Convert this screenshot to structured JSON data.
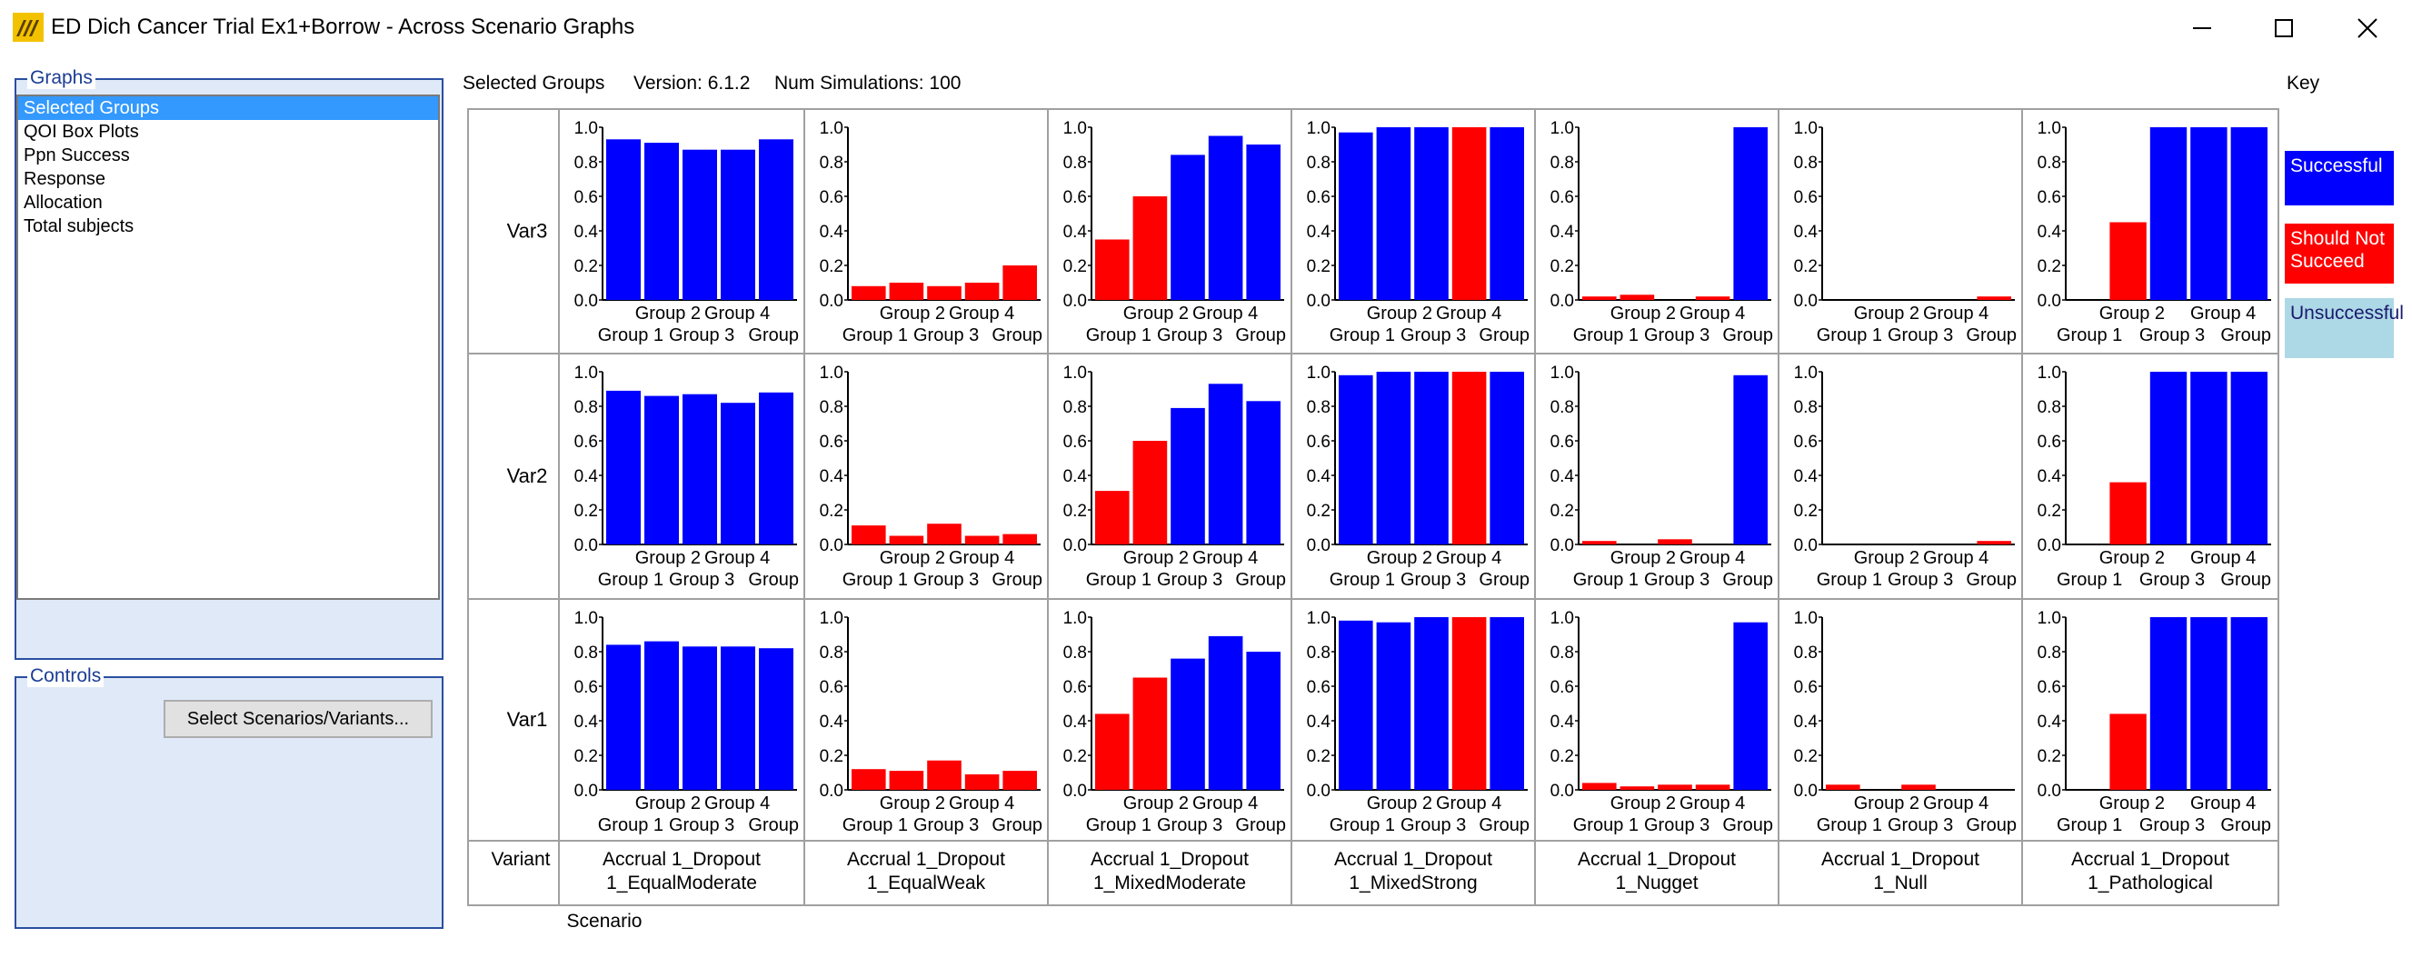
{
  "window": {
    "title": "ED Dich Cancer Trial Ex1+Borrow - Across Scenario Graphs",
    "icon": "app-logo-icon",
    "controls": [
      "minimize-icon",
      "maximize-icon",
      "close-icon"
    ]
  },
  "graphs_panel": {
    "legend": "Graphs",
    "items": [
      "Selected Groups",
      "QOI Box Plots",
      "Ppn Success",
      "Response",
      "Allocation",
      "Total subjects"
    ],
    "selected_index": 0
  },
  "controls_panel": {
    "legend": "Controls",
    "button_label": "Select Scenarios/Variants..."
  },
  "header": {
    "graph_name": "Selected Groups",
    "version_text": "Version: 6.1.2",
    "simulations_text": "Num Simulations: 100"
  },
  "key": {
    "title": "Key",
    "items": [
      {
        "label": "Successful",
        "color": "#0000ff"
      },
      {
        "label": "Should Not Succeed",
        "color": "#ff0000"
      },
      {
        "label": "Unsuccessful",
        "color": "#add8e6"
      }
    ]
  },
  "grid": {
    "row_labels": [
      "Var3",
      "Var2",
      "Var1"
    ],
    "variant_label": "Variant",
    "scenario_label": "Scenario",
    "scenario_names": [
      [
        "Accrual 1_Dropout",
        "1_EqualModerate"
      ],
      [
        "Accrual 1_Dropout",
        "1_EqualWeak"
      ],
      [
        "Accrual 1_Dropout",
        "1_MixedModerate"
      ],
      [
        "Accrual 1_Dropout",
        "1_MixedStrong"
      ],
      [
        "Accrual 1_Dropout",
        "1_Nugget"
      ],
      [
        "Accrual 1_Dropout",
        "1_Null"
      ],
      [
        "Accrual 1_Dropout",
        "1_Pathological"
      ]
    ]
  },
  "chart_data": {
    "type": "bar",
    "categories": [
      "Group 1",
      "Group 2",
      "Group 3",
      "Group 4",
      "Group"
    ],
    "ylim": [
      0,
      1
    ],
    "yticks": [
      "0.0",
      "0.2",
      "0.4",
      "0.6",
      "0.8",
      "1.0"
    ],
    "x_tick_rows": {
      "top": [
        "Group 2",
        "Group 4"
      ],
      "bottom": [
        "Group 1",
        "Group 3",
        "Group"
      ],
      "bottom_pathological": [
        "Group 1",
        "Group 3",
        "Group"
      ]
    },
    "status_colors": {
      "S": "#0000ff",
      "N": "#ff0000",
      "U": "#add8e6"
    },
    "panels": [
      {
        "row": "Var3",
        "scenario": "1_EqualModerate",
        "values": [
          0.93,
          0.91,
          0.87,
          0.87,
          0.93
        ],
        "status": [
          "S",
          "S",
          "S",
          "S",
          "S"
        ]
      },
      {
        "row": "Var3",
        "scenario": "1_EqualWeak",
        "values": [
          0.08,
          0.1,
          0.08,
          0.1,
          0.2
        ],
        "status": [
          "N",
          "N",
          "N",
          "N",
          "N"
        ]
      },
      {
        "row": "Var3",
        "scenario": "1_MixedModerate",
        "values": [
          0.35,
          0.6,
          0.84,
          0.95,
          0.9
        ],
        "status": [
          "N",
          "N",
          "S",
          "S",
          "S"
        ]
      },
      {
        "row": "Var3",
        "scenario": "1_MixedStrong",
        "values": [
          0.97,
          1.0,
          1.0,
          1.0,
          1.0
        ],
        "status": [
          "S",
          "S",
          "S",
          "N",
          "S"
        ]
      },
      {
        "row": "Var3",
        "scenario": "1_Nugget",
        "values": [
          0.02,
          0.03,
          0.0,
          0.02,
          1.0
        ],
        "status": [
          "N",
          "N",
          "N",
          "N",
          "S"
        ]
      },
      {
        "row": "Var3",
        "scenario": "1_Null",
        "values": [
          0.0,
          0.0,
          0.0,
          0.0,
          0.02
        ],
        "status": [
          "N",
          "N",
          "N",
          "N",
          "N"
        ]
      },
      {
        "row": "Var3",
        "scenario": "1_Pathological",
        "values": [
          0.0,
          0.45,
          1.0,
          1.0,
          1.0
        ],
        "status": [
          "N",
          "N",
          "S",
          "S",
          "S"
        ]
      },
      {
        "row": "Var2",
        "scenario": "1_EqualModerate",
        "values": [
          0.89,
          0.86,
          0.87,
          0.82,
          0.88
        ],
        "status": [
          "S",
          "S",
          "S",
          "S",
          "S"
        ]
      },
      {
        "row": "Var2",
        "scenario": "1_EqualWeak",
        "values": [
          0.11,
          0.05,
          0.12,
          0.05,
          0.06
        ],
        "status": [
          "N",
          "N",
          "N",
          "N",
          "N"
        ]
      },
      {
        "row": "Var2",
        "scenario": "1_MixedModerate",
        "values": [
          0.31,
          0.6,
          0.79,
          0.93,
          0.83
        ],
        "status": [
          "N",
          "N",
          "S",
          "S",
          "S"
        ]
      },
      {
        "row": "Var2",
        "scenario": "1_MixedStrong",
        "values": [
          0.98,
          1.0,
          1.0,
          1.0,
          1.0
        ],
        "status": [
          "S",
          "S",
          "S",
          "N",
          "S"
        ]
      },
      {
        "row": "Var2",
        "scenario": "1_Nugget",
        "values": [
          0.02,
          0.0,
          0.03,
          0.0,
          0.98
        ],
        "status": [
          "N",
          "N",
          "N",
          "N",
          "S"
        ]
      },
      {
        "row": "Var2",
        "scenario": "1_Null",
        "values": [
          0.0,
          0.0,
          0.0,
          0.0,
          0.02
        ],
        "status": [
          "N",
          "N",
          "N",
          "N",
          "N"
        ]
      },
      {
        "row": "Var2",
        "scenario": "1_Pathological",
        "values": [
          0.0,
          0.36,
          1.0,
          1.0,
          1.0
        ],
        "status": [
          "N",
          "N",
          "S",
          "S",
          "S"
        ]
      },
      {
        "row": "Var1",
        "scenario": "1_EqualModerate",
        "values": [
          0.84,
          0.86,
          0.83,
          0.83,
          0.82
        ],
        "status": [
          "S",
          "S",
          "S",
          "S",
          "S"
        ]
      },
      {
        "row": "Var1",
        "scenario": "1_EqualWeak",
        "values": [
          0.12,
          0.11,
          0.17,
          0.09,
          0.11
        ],
        "status": [
          "N",
          "N",
          "N",
          "N",
          "N"
        ]
      },
      {
        "row": "Var1",
        "scenario": "1_MixedModerate",
        "values": [
          0.44,
          0.65,
          0.76,
          0.89,
          0.8
        ],
        "status": [
          "N",
          "N",
          "S",
          "S",
          "S"
        ]
      },
      {
        "row": "Var1",
        "scenario": "1_MixedStrong",
        "values": [
          0.98,
          0.97,
          1.0,
          1.0,
          1.0
        ],
        "status": [
          "S",
          "S",
          "S",
          "N",
          "S"
        ]
      },
      {
        "row": "Var1",
        "scenario": "1_Nugget",
        "values": [
          0.04,
          0.02,
          0.03,
          0.03,
          0.97
        ],
        "status": [
          "N",
          "N",
          "N",
          "N",
          "S"
        ]
      },
      {
        "row": "Var1",
        "scenario": "1_Null",
        "values": [
          0.03,
          0.0,
          0.03,
          0.0,
          0.0
        ],
        "status": [
          "N",
          "N",
          "N",
          "N",
          "N"
        ]
      },
      {
        "row": "Var1",
        "scenario": "1_Pathological",
        "values": [
          0.0,
          0.44,
          1.0,
          1.0,
          1.0
        ],
        "status": [
          "N",
          "N",
          "S",
          "S",
          "S"
        ]
      }
    ]
  }
}
